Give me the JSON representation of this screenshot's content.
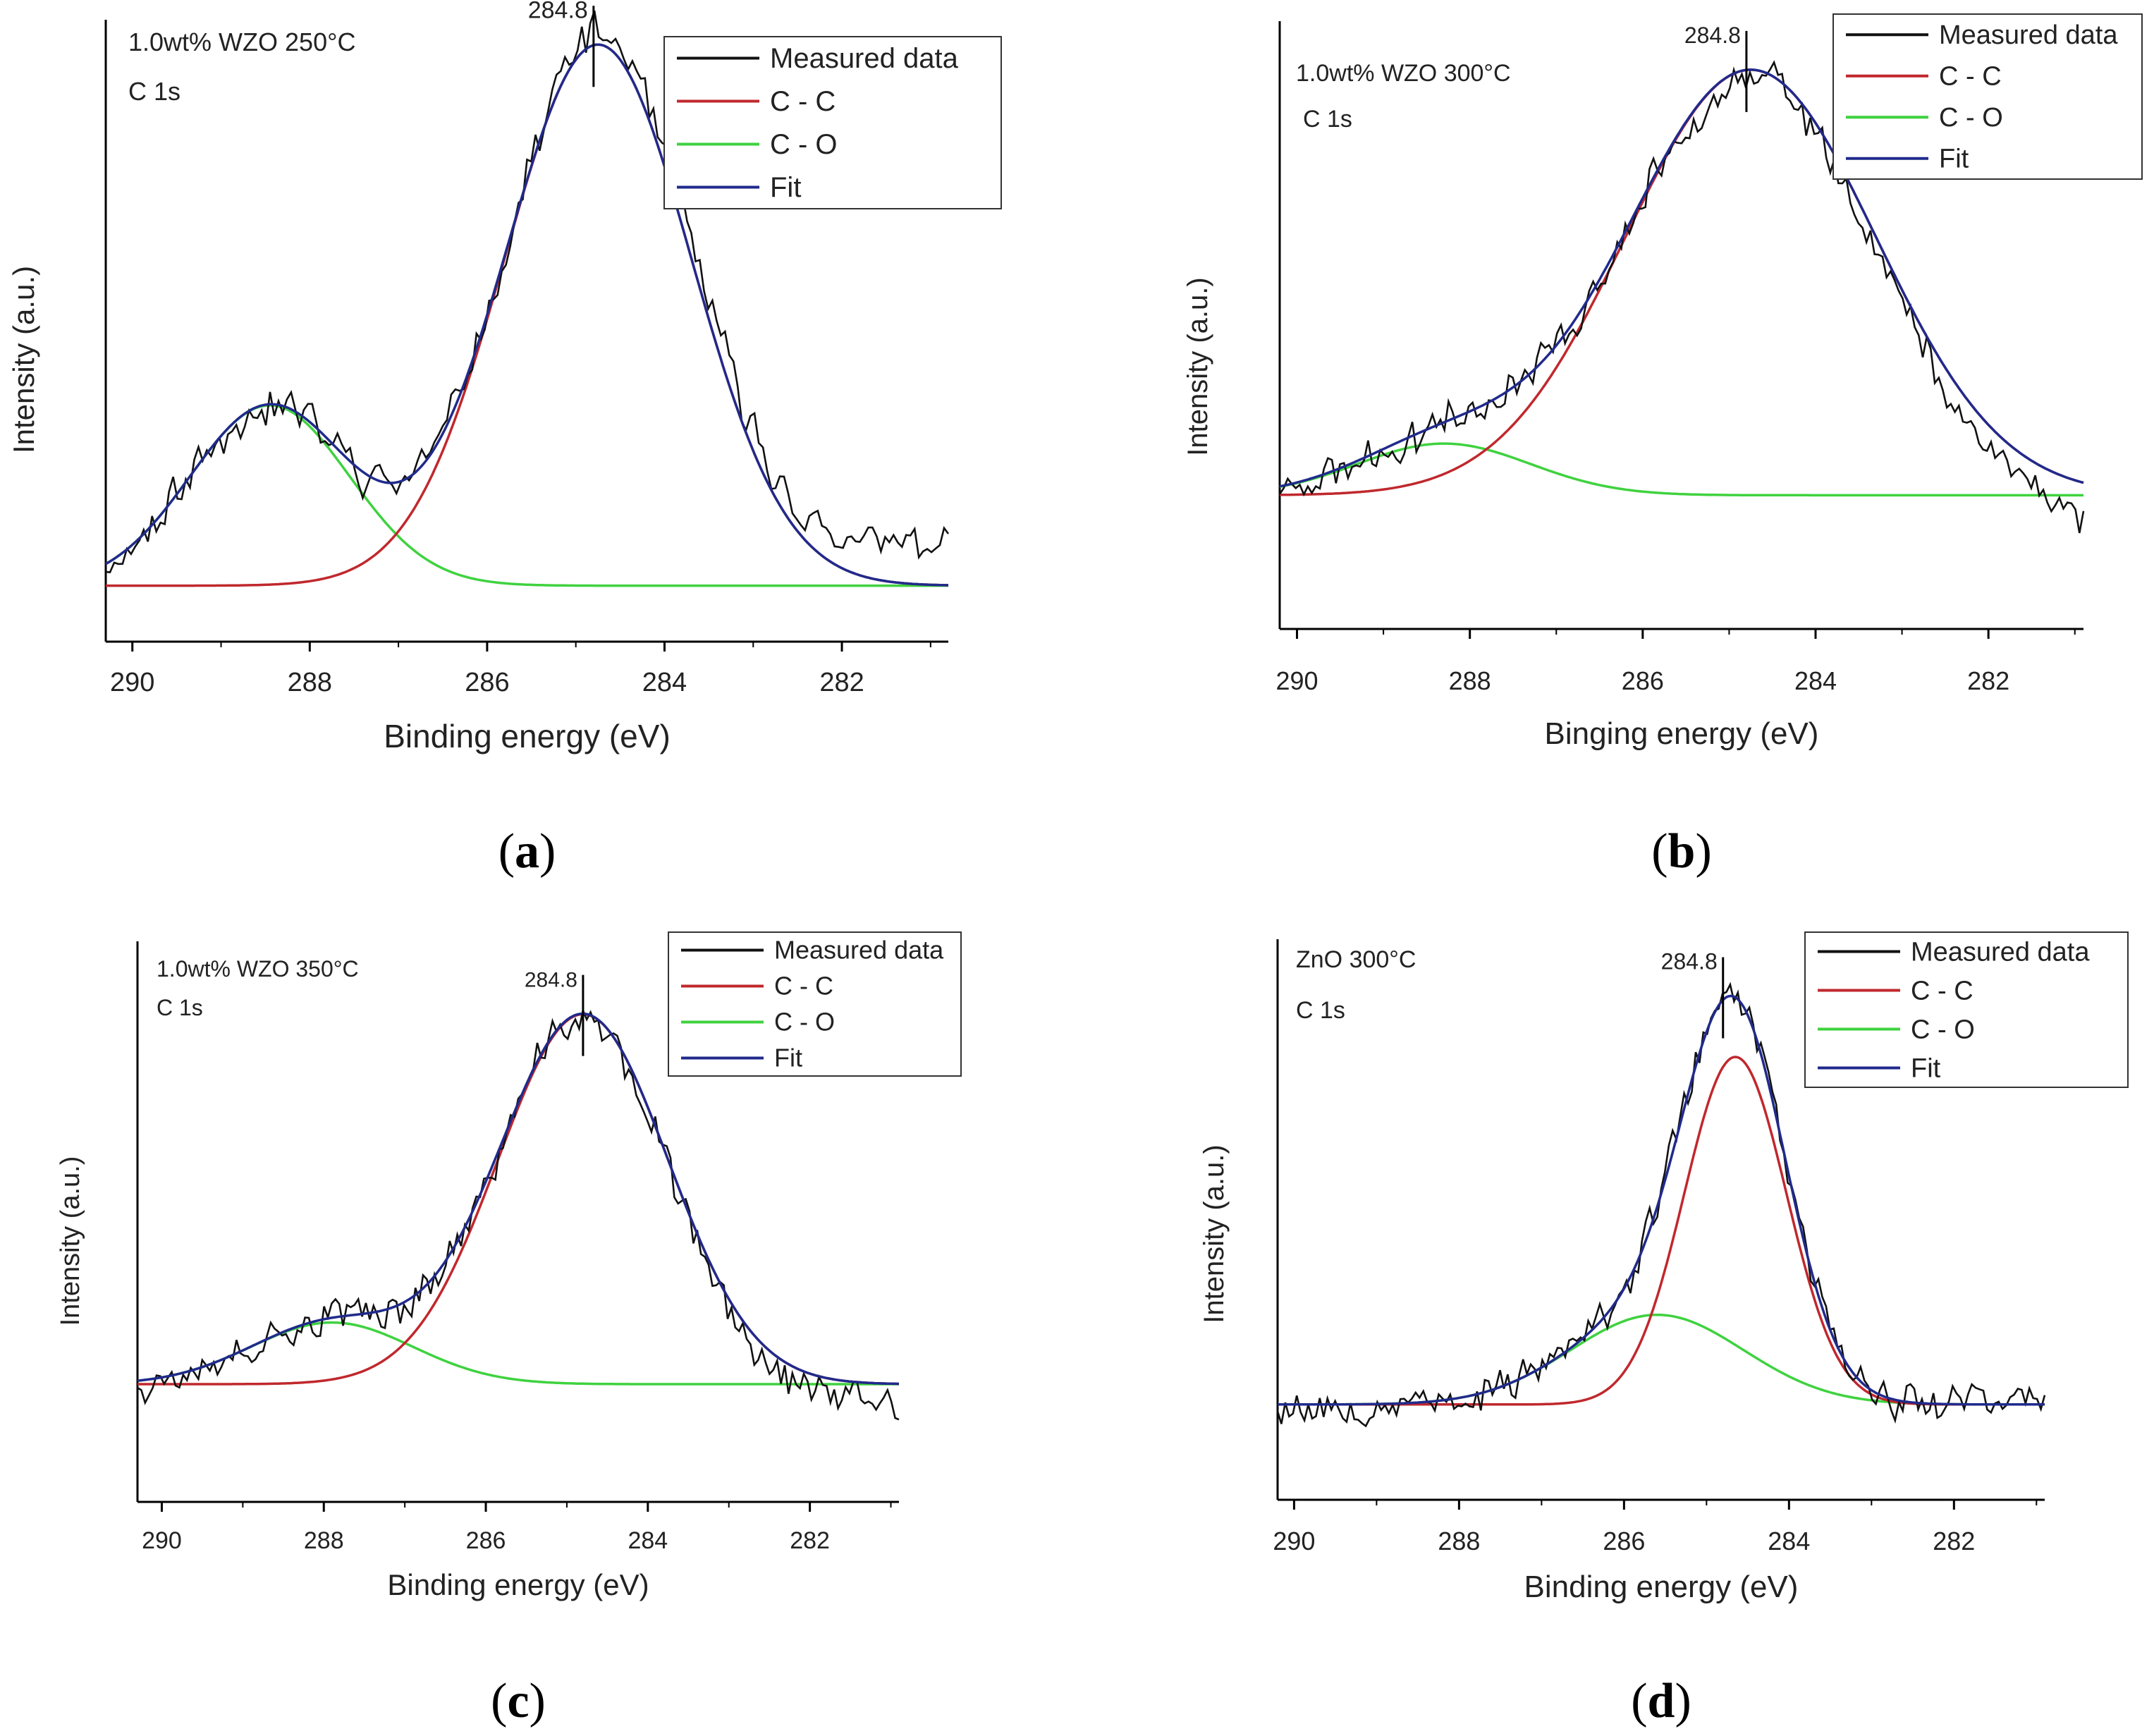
{
  "figure": {
    "panel_count": 4
  },
  "colors": {
    "measured": "#111111",
    "cc": "#c0282d",
    "co": "#3fd23f",
    "fit": "#202a8c",
    "axis": "#000000",
    "text": "#222222"
  },
  "chart_data": [
    {
      "type": "line",
      "panel_label": "a",
      "sample": "1.0wt% WZO 250°C",
      "region": "C 1s",
      "xlabel": "Binding energy (eV)",
      "ylabel": "Intensity (a.u.)",
      "xlim": [
        290.3,
        280.8
      ],
      "ylim": [
        0,
        1.0
      ],
      "xticks": [
        290,
        288,
        286,
        284,
        282
      ],
      "xtick_labels": [
        "290",
        "288",
        "286",
        "284",
        "282"
      ],
      "peak_marker": {
        "x": 284.8,
        "label": "284.8"
      },
      "legend": {
        "position": "top-right",
        "entries": [
          "Measured data",
          "C - C",
          "C - O",
          "Fit"
        ]
      },
      "baseline": 0.09,
      "components": [
        {
          "name": "C - C",
          "center": 284.75,
          "height": 0.87,
          "sigma": 1.05
        },
        {
          "name": "C - O",
          "center": 288.45,
          "height": 0.29,
          "sigma": 0.9
        }
      ],
      "measured_offset": {
        "start": 0.0,
        "end": 0.07
      },
      "seed": 11
    },
    {
      "type": "line",
      "panel_label": "b",
      "sample": "1.0wt% WZO 300°C",
      "region": "C 1s",
      "xlabel": "Binging energy (eV)",
      "ylabel": "Intensity (a.u.)",
      "xlim": [
        290.2,
        280.9
      ],
      "ylim": [
        0,
        1.0
      ],
      "xticks": [
        290,
        288,
        286,
        284,
        282
      ],
      "xtick_labels": [
        "290",
        "288",
        "286",
        "284",
        "282"
      ],
      "peak_marker": {
        "x": 284.8,
        "label": "284.8"
      },
      "legend": {
        "position": "top-right",
        "entries": [
          "Measured data",
          "C - C",
          "C - O",
          "Fit"
        ]
      },
      "baseline": 0.22,
      "components": [
        {
          "name": "C - C",
          "center": 284.75,
          "height": 0.7,
          "sigma": 1.45
        },
        {
          "name": "C - O",
          "center": 288.3,
          "height": 0.085,
          "sigma": 1.0
        }
      ],
      "measured_offset": {
        "start": 0.0,
        "end": -0.05
      },
      "seed": 23
    },
    {
      "type": "line",
      "panel_label": "c",
      "sample": "1.0wt% WZO 350°C",
      "region": "C 1s",
      "xlabel": "Binding energy (eV)",
      "ylabel": "Intensity (a.u.)",
      "xlim": [
        290.3,
        280.9
      ],
      "ylim": [
        0,
        1.0
      ],
      "xticks": [
        290,
        288,
        286,
        284,
        282
      ],
      "xtick_labels": [
        "290",
        "288",
        "286",
        "284",
        "282"
      ],
      "peak_marker": {
        "x": 284.8,
        "label": "284.8"
      },
      "legend": {
        "position": "top-right",
        "entries": [
          "Measured data",
          "C - C",
          "C - O",
          "Fit"
        ]
      },
      "baseline": 0.21,
      "components": [
        {
          "name": "C - C",
          "center": 284.8,
          "height": 0.66,
          "sigma": 1.05
        },
        {
          "name": "C - O",
          "center": 287.9,
          "height": 0.11,
          "sigma": 1.0
        }
      ],
      "measured_offset": {
        "start": 0.0,
        "end": -0.04
      },
      "seed": 37
    },
    {
      "type": "line",
      "panel_label": "d",
      "sample": "ZnO 300°C",
      "region": "C 1s",
      "xlabel": "Binding energy (eV)",
      "ylabel": "Intensity (a.u.)",
      "xlim": [
        290.2,
        280.9
      ],
      "ylim": [
        0,
        1.0
      ],
      "xticks": [
        290,
        288,
        286,
        284,
        282
      ],
      "xtick_labels": [
        "290",
        "288",
        "286",
        "284",
        "282"
      ],
      "peak_marker": {
        "x": 284.8,
        "label": "284.8"
      },
      "legend": {
        "position": "top-right",
        "entries": [
          "Measured data",
          "C - C",
          "C - O",
          "Fit"
        ]
      },
      "baseline": 0.17,
      "components": [
        {
          "name": "C - C",
          "center": 284.65,
          "height": 0.62,
          "sigma": 0.62
        },
        {
          "name": "C - O",
          "center": 285.6,
          "height": 0.16,
          "sigma": 1.05
        }
      ],
      "measured_offset": {
        "start": 0.0,
        "end": 0.01
      },
      "seed": 53
    }
  ]
}
